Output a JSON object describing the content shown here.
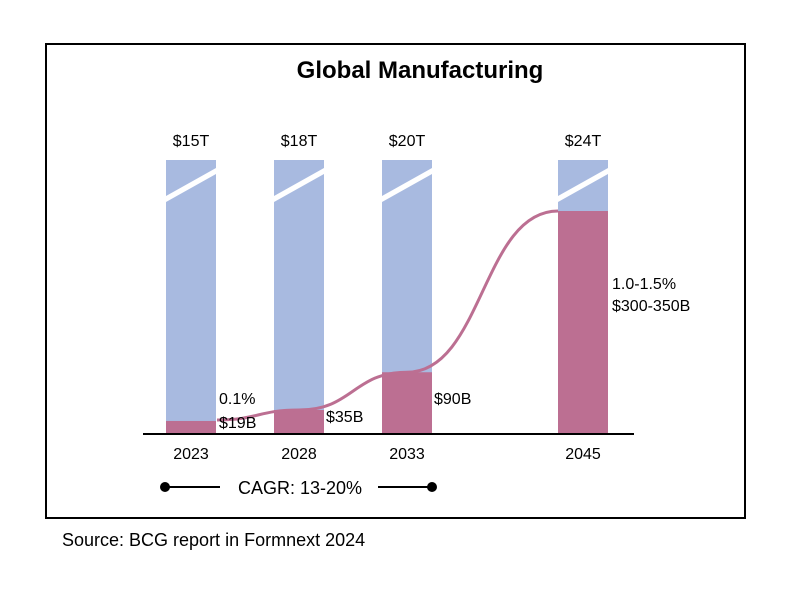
{
  "chart_data": {
    "type": "bar",
    "title": "Global Manufacturing",
    "categories": [
      "2023",
      "2028",
      "2033",
      "2045"
    ],
    "series": [
      {
        "values": [
          15,
          18,
          20,
          24
        ],
        "labels": [
          "$15T",
          "$18T",
          "$20T",
          "$24T"
        ]
      },
      {
        "values": [
          19,
          35,
          90,
          325
        ],
        "labels": [
          "$19B",
          "$35B",
          "$90B",
          "$300-350B"
        ],
        "share_labels": [
          "0.1%",
          "",
          "",
          "1.0-1.5%"
        ]
      }
    ],
    "annotation": "CAGR: 13-20%",
    "colors": {
      "total": "#a8bae0",
      "segment": "#bc6f92",
      "curve": "#bc6f92"
    },
    "scale_break": true
  },
  "source": "Source: BCG report in Formnext 2024"
}
